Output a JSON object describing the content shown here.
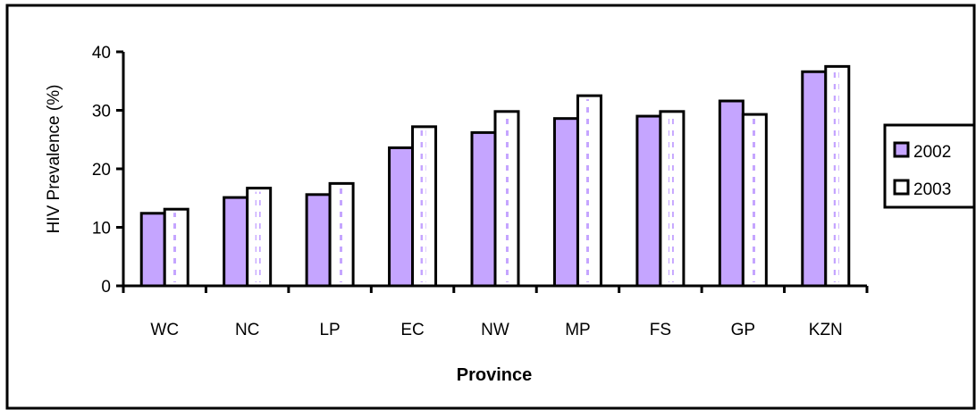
{
  "chart_data": {
    "type": "bar",
    "title": "",
    "xlabel": "Province",
    "ylabel": "HIV Prevalence (%)",
    "ylim": [
      0,
      40
    ],
    "yticks": [
      0,
      10,
      20,
      30,
      40
    ],
    "grid": false,
    "legend_position": "right",
    "categories": [
      "WC",
      "NC",
      "LP",
      "EC",
      "NW",
      "MP",
      "FS",
      "GP",
      "KZN"
    ],
    "series": [
      {
        "name": "2002",
        "color": "#c5a5ff",
        "values": [
          12.4,
          15.1,
          15.6,
          23.6,
          26.2,
          28.6,
          29.0,
          31.6,
          36.6
        ]
      },
      {
        "name": "2003",
        "color": "#ffffff",
        "values": [
          13.1,
          16.7,
          17.5,
          27.2,
          29.8,
          32.5,
          29.8,
          29.3,
          37.5
        ]
      }
    ]
  }
}
